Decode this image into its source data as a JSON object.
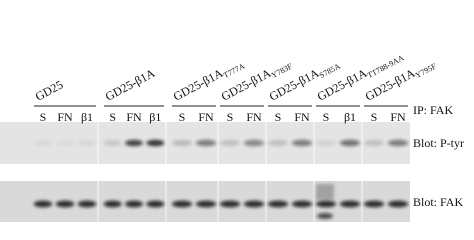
{
  "groups": [
    {
      "name": "GD25",
      "lanes": [
        "S",
        "FN",
        "β1"
      ]
    },
    {
      "name": "GD25-β1A",
      "lanes": [
        "S",
        "FN",
        "β1"
      ]
    },
    {
      "name": "GD25-β1A",
      "subscript": "T777A",
      "lanes": [
        "S",
        "FN"
      ]
    },
    {
      "name": "GD25-β1A",
      "subscript": "Y783F",
      "lanes": [
        "S",
        "FN"
      ]
    },
    {
      "name": "GD25-β1A",
      "subscript": "S785A",
      "lanes": [
        "S",
        "FN"
      ]
    },
    {
      "name": "GD25-β1A",
      "subscript": "TT788-9AA",
      "lanes": [
        "S",
        "β1"
      ]
    },
    {
      "name": "GD25-β1A",
      "subscript": "Y795F",
      "lanes": [
        "S",
        "FN"
      ]
    }
  ],
  "labels": {
    "ip": "IP: FAK",
    "blot_top": "Blot: P-tyr",
    "blot_bottom": "Blot: FAK"
  }
}
